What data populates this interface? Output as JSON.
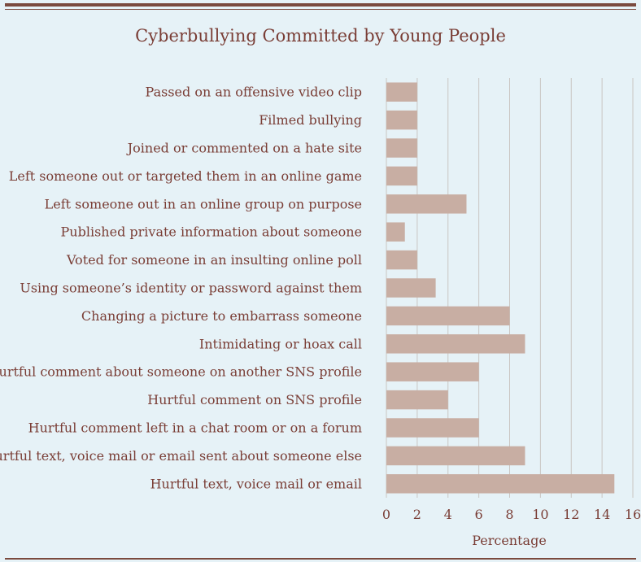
{
  "chart_data": {
    "type": "bar",
    "orientation": "horizontal",
    "title": "Cyberbullying Committed by Young People",
    "xlabel": "Percentage",
    "ylabel": "",
    "xlim": [
      0,
      16
    ],
    "xticks": [
      "0",
      "2",
      "4",
      "6",
      "8",
      "10",
      "12",
      "14",
      "16"
    ],
    "grid": "vertical",
    "categories": [
      "Passed on an offensive video clip",
      "Filmed bullying",
      "Joined or commented on a hate site",
      "Left someone out or targeted them in an online game",
      "Left someone out in an online group on purpose",
      "Published private information about someone",
      "Voted for someone in an insulting online poll",
      "Using someone’s identity or password against them",
      "Changing a picture to embarrass someone",
      "Intimidating or hoax call",
      "Hurtful comment about someone on another SNS profile",
      "Hurtful comment on SNS profile",
      "Hurtful comment left in a chat room or on a forum",
      "Hurtful text, voice mail or email sent about someone else",
      "Hurtful text, voice mail or email"
    ],
    "values": [
      2,
      2,
      2,
      2,
      5.2,
      1.2,
      2,
      3.2,
      8,
      9,
      6,
      4,
      6,
      9,
      14.8
    ],
    "colors": {
      "bar": "#c8aea3",
      "grid": "#c9c5c2",
      "text": "#7a3e36",
      "rule": "#7a4a3e",
      "background": "#e6f2f7"
    }
  }
}
